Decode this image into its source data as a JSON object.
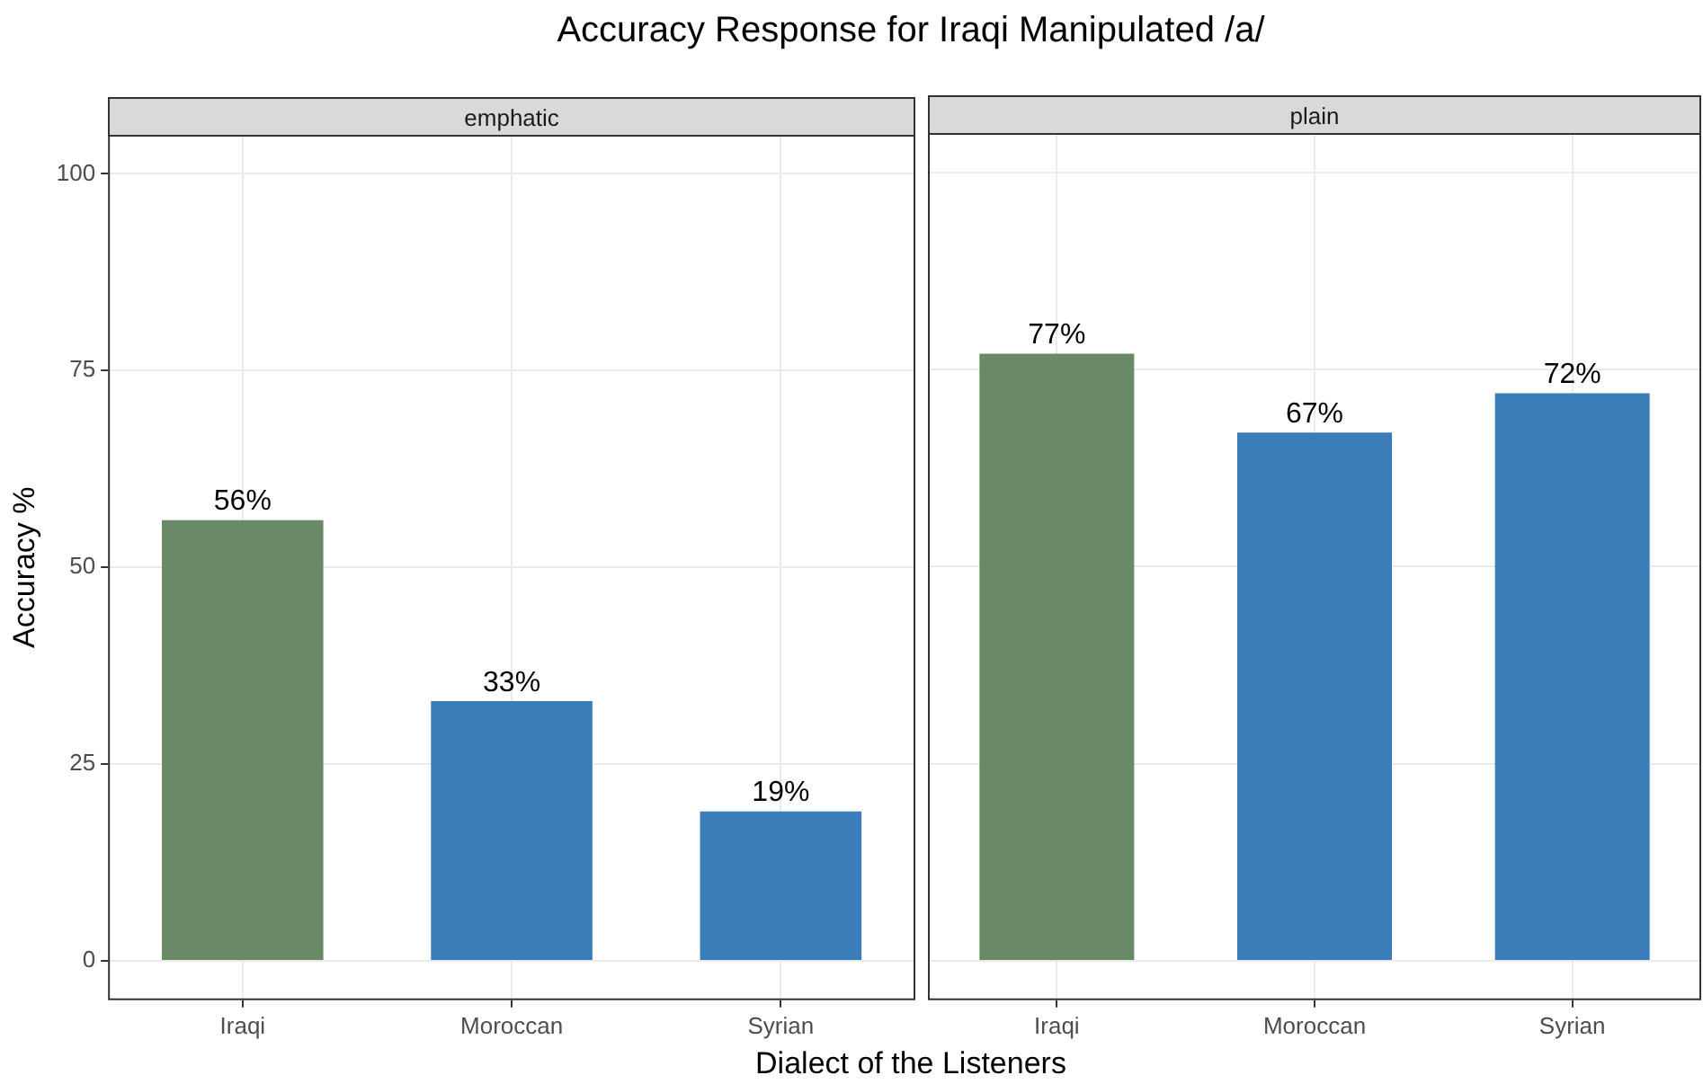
{
  "chart_data": [
    {
      "type": "bar",
      "title": "Accuracy Response for Iraqi Manipulated /a/",
      "subtitle": "emphatic",
      "xlabel": "Dialect of the Listeners",
      "ylabel": "Accuracy %",
      "categories": [
        "Iraqi",
        "Moroccan",
        "Syrian"
      ],
      "values": [
        56,
        33,
        19
      ],
      "value_labels": [
        "56%",
        "33%",
        "19%"
      ],
      "colors": [
        "#6a8a67",
        "#3a7db8",
        "#3a7db8"
      ],
      "ylim": [
        -5,
        105
      ],
      "yticks": [
        0,
        25,
        50,
        75,
        100
      ],
      "grid": true
    },
    {
      "type": "bar",
      "subtitle": "plain",
      "categories": [
        "Iraqi",
        "Moroccan",
        "Syrian"
      ],
      "values": [
        77,
        67,
        72
      ],
      "value_labels": [
        "77%",
        "67%",
        "72%"
      ],
      "colors": [
        "#6a8a67",
        "#3a7db8",
        "#3a7db8"
      ],
      "ylim": [
        -5,
        105
      ],
      "yticks": [
        0,
        25,
        50,
        75,
        100
      ],
      "grid": true,
      "tick_labels": "x"
    }
  ]
}
